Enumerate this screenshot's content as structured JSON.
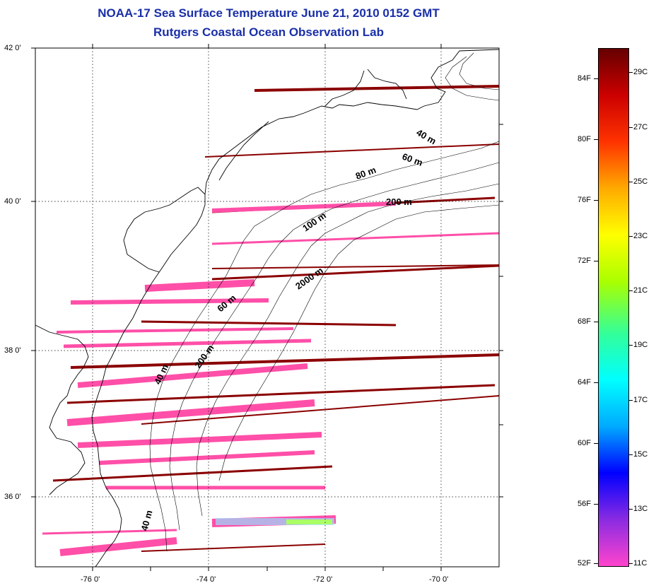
{
  "title": {
    "line1": "NOAA-17 Sea Surface Temperature June 21, 2010 0152 GMT",
    "line2": "Rutgers Coastal Ocean Observation Lab"
  },
  "axes": {
    "lat_labels": [
      "42 0'",
      "40 0'",
      "38 0'",
      "36 0'"
    ],
    "lon_labels": [
      "-76 0'",
      "-74 0'",
      "-72 0'",
      "-70 0'"
    ]
  },
  "isobaths": [
    "40 m",
    "60 m",
    "80 m",
    "200 m",
    "100 m",
    "2000 m",
    "60 m",
    "200 m",
    "40 m",
    "40 m"
  ],
  "colorbar": {
    "fahrenheit": [
      "84F",
      "80F",
      "76F",
      "72F",
      "68F",
      "64F",
      "60F",
      "56F",
      "52F"
    ],
    "celsius": [
      "29C",
      "27C",
      "25C",
      "23C",
      "21C",
      "19C",
      "17C",
      "15C",
      "13C",
      "11C"
    ],
    "colors": [
      "#ff44cc",
      "#8a2be2",
      "#0000ff",
      "#00aaff",
      "#00ffff",
      "#33ff99",
      "#aaff00",
      "#ffff00",
      "#ffaa00",
      "#ff3300",
      "#cc0000",
      "#660000"
    ]
  },
  "swath_colors": {
    "cold": "#ff4fa8",
    "warm": "#8b0000",
    "mid": "#ff66cc"
  }
}
